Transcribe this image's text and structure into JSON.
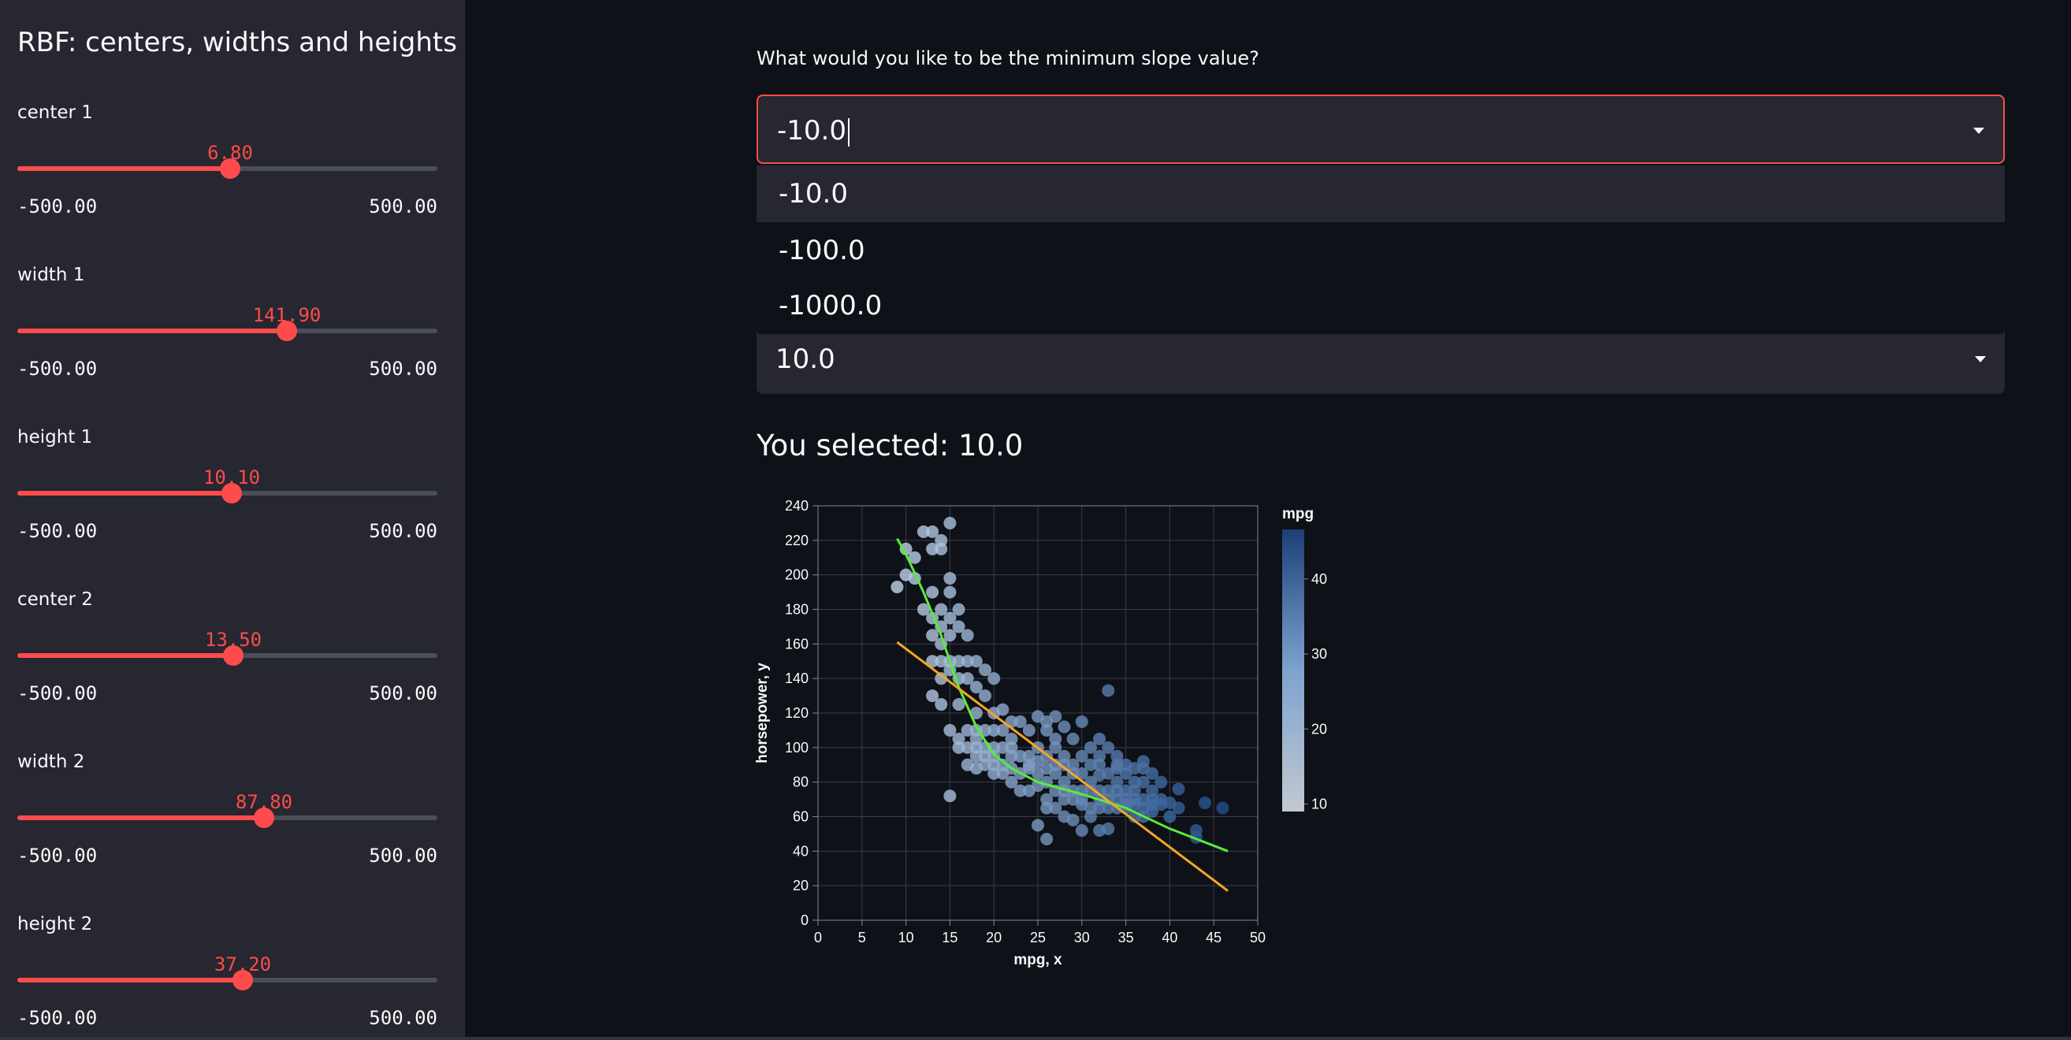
{
  "sidebar": {
    "title": "RBF: centers, widths and heights",
    "sliders": [
      {
        "label": "center 1",
        "value": "6.80",
        "min": "-500.00",
        "max": "500.00",
        "fraction": 0.5068
      },
      {
        "label": "width 1",
        "value": "141.90",
        "min": "-500.00",
        "max": "500.00",
        "fraction": 0.6419
      },
      {
        "label": "height 1",
        "value": "10.10",
        "min": "-500.00",
        "max": "500.00",
        "fraction": 0.5101
      },
      {
        "label": "center 2",
        "value": "13.50",
        "min": "-500.00",
        "max": "500.00",
        "fraction": 0.5135
      },
      {
        "label": "width 2",
        "value": "87.80",
        "min": "-500.00",
        "max": "500.00",
        "fraction": 0.5878
      },
      {
        "label": "height 2",
        "value": "37.20",
        "min": "-500.00",
        "max": "500.00",
        "fraction": 0.5372
      }
    ]
  },
  "main": {
    "question_label": "What would you like to be the minimum slope value?",
    "min_slope_select": {
      "value": "-10.0",
      "options": [
        "-10.0",
        "-100.0",
        "-1000.0"
      ]
    },
    "max_slope_select": {
      "value": "10.0"
    },
    "selected_text": "You selected: 10.0"
  },
  "colors": {
    "accent": "#ff4b4b",
    "line_green": "#58ec3a",
    "line_orange": "#f5a623",
    "point_light": "#b8d3ec",
    "point_dark": "#1f4e8c"
  },
  "chart_data": {
    "type": "scatter",
    "xlabel": "mpg, x",
    "ylabel": "horsepower, y",
    "xlim": [
      0,
      50
    ],
    "ylim": [
      0,
      240
    ],
    "xticks": [
      0,
      5,
      10,
      15,
      20,
      25,
      30,
      35,
      40,
      45,
      50
    ],
    "yticks": [
      0,
      20,
      40,
      60,
      80,
      100,
      120,
      140,
      160,
      180,
      200,
      220,
      240
    ],
    "grid": true,
    "colorbar": {
      "title": "mpg",
      "ticks": [
        10,
        20,
        30,
        40
      ],
      "range": [
        9,
        46.6
      ]
    },
    "points": [
      [
        9,
        193
      ],
      [
        10,
        215
      ],
      [
        10,
        200
      ],
      [
        11,
        198
      ],
      [
        11,
        210
      ],
      [
        12,
        225
      ],
      [
        12,
        180
      ],
      [
        13,
        225
      ],
      [
        13,
        215
      ],
      [
        13,
        190
      ],
      [
        13,
        175
      ],
      [
        13,
        165
      ],
      [
        13,
        150
      ],
      [
        13,
        130
      ],
      [
        14,
        220
      ],
      [
        14,
        215
      ],
      [
        14,
        180
      ],
      [
        14,
        170
      ],
      [
        14,
        160
      ],
      [
        14,
        150
      ],
      [
        14,
        140
      ],
      [
        14,
        125
      ],
      [
        15,
        230
      ],
      [
        15,
        198
      ],
      [
        15,
        190
      ],
      [
        15,
        175
      ],
      [
        15,
        165
      ],
      [
        15,
        150
      ],
      [
        15,
        145
      ],
      [
        15,
        110
      ],
      [
        15,
        72
      ],
      [
        16,
        180
      ],
      [
        16,
        170
      ],
      [
        16,
        150
      ],
      [
        16,
        140
      ],
      [
        16,
        125
      ],
      [
        16,
        105
      ],
      [
        16,
        100
      ],
      [
        17,
        165
      ],
      [
        17,
        150
      ],
      [
        17,
        140
      ],
      [
        17,
        110
      ],
      [
        17,
        100
      ],
      [
        17,
        90
      ],
      [
        18,
        150
      ],
      [
        18,
        135
      ],
      [
        18,
        120
      ],
      [
        18,
        110
      ],
      [
        18,
        105
      ],
      [
        18,
        100
      ],
      [
        18,
        95
      ],
      [
        18,
        88
      ],
      [
        19,
        145
      ],
      [
        19,
        130
      ],
      [
        19,
        110
      ],
      [
        19,
        100
      ],
      [
        19,
        95
      ],
      [
        19,
        90
      ],
      [
        20,
        140
      ],
      [
        20,
        120
      ],
      [
        20,
        110
      ],
      [
        20,
        100
      ],
      [
        20,
        95
      ],
      [
        20,
        90
      ],
      [
        20,
        85
      ],
      [
        21,
        122
      ],
      [
        21,
        110
      ],
      [
        21,
        100
      ],
      [
        21,
        90
      ],
      [
        21,
        85
      ],
      [
        22,
        115
      ],
      [
        22,
        105
      ],
      [
        22,
        100
      ],
      [
        22,
        95
      ],
      [
        22,
        88
      ],
      [
        22,
        80
      ],
      [
        23,
        115
      ],
      [
        23,
        95
      ],
      [
        23,
        85
      ],
      [
        23,
        75
      ],
      [
        24,
        110
      ],
      [
        24,
        95
      ],
      [
        24,
        90
      ],
      [
        24,
        88
      ],
      [
        24,
        75
      ],
      [
        25,
        118
      ],
      [
        25,
        100
      ],
      [
        25,
        92
      ],
      [
        25,
        85
      ],
      [
        25,
        78
      ],
      [
        25,
        55
      ],
      [
        26,
        115
      ],
      [
        26,
        110
      ],
      [
        26,
        95
      ],
      [
        26,
        88
      ],
      [
        26,
        80
      ],
      [
        26,
        70
      ],
      [
        26,
        65
      ],
      [
        26,
        47
      ],
      [
        27,
        118
      ],
      [
        27,
        105
      ],
      [
        27,
        100
      ],
      [
        27,
        90
      ],
      [
        27,
        85
      ],
      [
        27,
        75
      ],
      [
        27,
        65
      ],
      [
        28,
        112
      ],
      [
        28,
        95
      ],
      [
        28,
        90
      ],
      [
        28,
        80
      ],
      [
        28,
        75
      ],
      [
        28,
        70
      ],
      [
        28,
        60
      ],
      [
        29,
        105
      ],
      [
        29,
        90
      ],
      [
        29,
        85
      ],
      [
        29,
        75
      ],
      [
        29,
        70
      ],
      [
        29,
        58
      ],
      [
        30,
        115
      ],
      [
        30,
        95
      ],
      [
        30,
        85
      ],
      [
        30,
        75
      ],
      [
        30,
        70
      ],
      [
        30,
        67
      ],
      [
        30,
        52
      ],
      [
        31,
        100
      ],
      [
        31,
        90
      ],
      [
        31,
        80
      ],
      [
        31,
        75
      ],
      [
        31,
        65
      ],
      [
        31,
        60
      ],
      [
        32,
        105
      ],
      [
        32,
        95
      ],
      [
        32,
        90
      ],
      [
        32,
        84
      ],
      [
        32,
        75
      ],
      [
        32,
        70
      ],
      [
        32,
        65
      ],
      [
        32,
        52
      ],
      [
        33,
        133
      ],
      [
        33,
        100
      ],
      [
        33,
        85
      ],
      [
        33,
        75
      ],
      [
        33,
        70
      ],
      [
        33,
        65
      ],
      [
        33,
        53
      ],
      [
        34,
        95
      ],
      [
        34,
        90
      ],
      [
        34,
        88
      ],
      [
        34,
        80
      ],
      [
        34,
        75
      ],
      [
        34,
        70
      ],
      [
        34,
        65
      ],
      [
        35,
        90
      ],
      [
        35,
        85
      ],
      [
        35,
        75
      ],
      [
        35,
        70
      ],
      [
        35,
        67
      ],
      [
        35,
        65
      ],
      [
        36,
        88
      ],
      [
        36,
        80
      ],
      [
        36,
        75
      ],
      [
        36,
        70
      ],
      [
        36,
        67
      ],
      [
        36,
        60
      ],
      [
        37,
        92
      ],
      [
        37,
        88
      ],
      [
        37,
        80
      ],
      [
        37,
        70
      ],
      [
        37,
        65
      ],
      [
        37,
        60
      ],
      [
        38,
        85
      ],
      [
        38,
        75
      ],
      [
        38,
        70
      ],
      [
        38,
        67
      ],
      [
        38,
        63
      ],
      [
        39,
        80
      ],
      [
        39,
        70
      ],
      [
        39,
        67
      ],
      [
        40,
        68
      ],
      [
        40,
        60
      ],
      [
        41,
        76
      ],
      [
        41,
        65
      ],
      [
        43,
        52
      ],
      [
        43,
        48
      ],
      [
        44,
        68
      ],
      [
        46,
        65
      ]
    ],
    "series": [
      {
        "type": "line",
        "x": [
          9,
          10,
          12,
          14,
          16,
          18,
          20,
          22,
          25,
          30,
          35,
          40,
          46.6
        ],
        "y": [
          221,
          212,
          190,
          165,
          135,
          112,
          96,
          88,
          80,
          73,
          65,
          53,
          40
        ]
      },
      {
        "type": "line",
        "x": [
          9,
          46.6
        ],
        "y": [
          161,
          17
        ]
      }
    ]
  }
}
